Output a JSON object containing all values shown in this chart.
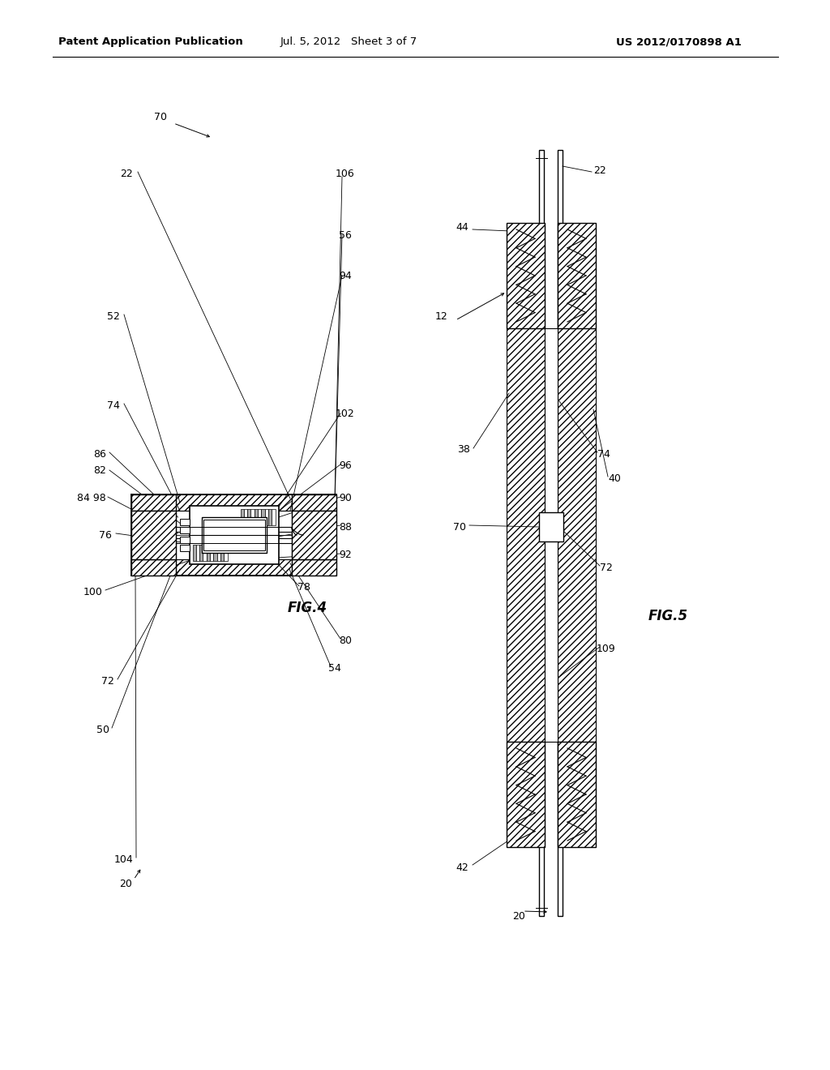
{
  "bg_color": "#ffffff",
  "header_left": "Patent Application Publication",
  "header_mid": "Jul. 5, 2012   Sheet 3 of 7",
  "header_right": "US 2012/0170898 A1",
  "fig4_label": "FIG.4",
  "fig5_label": "FIG.5",
  "label_fontsize": 9,
  "header_fontsize": 9.5
}
